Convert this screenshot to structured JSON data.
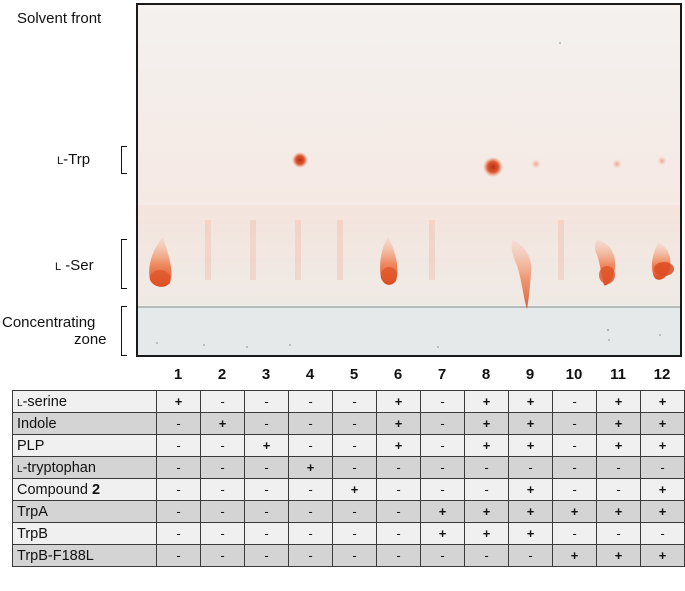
{
  "labels": {
    "solvent_front": "Solvent front",
    "trp_prefix": "l",
    "trp_suffix": "-Trp",
    "ser_prefix": "l",
    "ser_suffix": " -Ser",
    "concentrating_line1": "Concentrating",
    "concentrating_line2": "zone"
  },
  "lanes": [
    "1",
    "2",
    "3",
    "4",
    "5",
    "6",
    "7",
    "8",
    "9",
    "10",
    "11",
    "12"
  ],
  "rows": [
    {
      "prefix": "l",
      "label": "-serine",
      "bold_suffix": "",
      "values": [
        "+",
        "-",
        "-",
        "-",
        "-",
        "+",
        "-",
        "+",
        "+",
        "-",
        "+",
        "+"
      ]
    },
    {
      "prefix": "",
      "label": "Indole",
      "bold_suffix": "",
      "values": [
        "-",
        "+",
        "-",
        "-",
        "-",
        "+",
        "-",
        "+",
        "+",
        "-",
        "+",
        "+"
      ]
    },
    {
      "prefix": "",
      "label": "PLP",
      "bold_suffix": "",
      "values": [
        "-",
        "-",
        "+",
        "-",
        "-",
        "+",
        "-",
        "+",
        "+",
        "-",
        "+",
        "+"
      ]
    },
    {
      "prefix": "l",
      "label": "-tryptophan",
      "bold_suffix": "",
      "values": [
        "-",
        "-",
        "-",
        "+",
        "-",
        "-",
        "-",
        "-",
        "-",
        "-",
        "-",
        "-"
      ]
    },
    {
      "prefix": "",
      "label": "Compound ",
      "bold_suffix": "2",
      "values": [
        "-",
        "-",
        "-",
        "-",
        "+",
        "-",
        "-",
        "-",
        "+",
        "-",
        "-",
        "+"
      ]
    },
    {
      "prefix": "",
      "label": "TrpA",
      "bold_suffix": "",
      "values": [
        "-",
        "-",
        "-",
        "-",
        "-",
        "-",
        "+",
        "+",
        "+",
        "+",
        "+",
        "+"
      ]
    },
    {
      "prefix": "",
      "label": "TrpB",
      "bold_suffix": "",
      "values": [
        "-",
        "-",
        "-",
        "-",
        "-",
        "-",
        "+",
        "+",
        "+",
        "-",
        "-",
        "-"
      ]
    },
    {
      "prefix": "",
      "label": "TrpB-F188L",
      "bold_suffix": "",
      "values": [
        "-",
        "-",
        "-",
        "-",
        "-",
        "-",
        "-",
        "-",
        "-",
        "+",
        "+",
        "+"
      ]
    }
  ],
  "colors": {
    "spot": "#e2562a",
    "spot_dark": "#c8331a",
    "plate_bg": "#f6efec"
  }
}
